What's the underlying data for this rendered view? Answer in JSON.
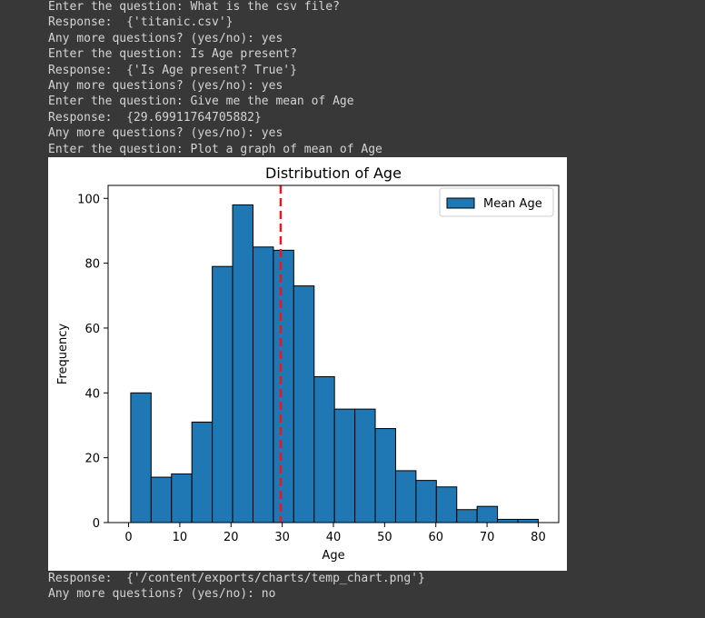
{
  "console": {
    "lines_top": [
      "Enter the question: What is the csv file?",
      "Response:  {'titanic.csv'}",
      "Any more questions? (yes/no): yes",
      "Enter the question: Is Age present?",
      "Response:  {'Is Age present? True'}",
      "Any more questions? (yes/no): yes",
      "Enter the question: Give me the mean of Age",
      "Response:  {29.69911764705882}",
      "Any more questions? (yes/no): yes",
      "Enter the question: Plot a graph of mean of Age"
    ],
    "lines_bottom": [
      "Response:  {'/content/exports/charts/temp_chart.png'}",
      "Any more questions? (yes/no): no"
    ]
  },
  "chart_data": {
    "type": "bar",
    "title": "Distribution of Age",
    "xlabel": "Age",
    "ylabel": "Frequency",
    "xlim": [
      -4,
      84
    ],
    "ylim": [
      0,
      104
    ],
    "xticks": [
      0,
      10,
      20,
      30,
      40,
      50,
      60,
      70,
      80
    ],
    "yticks": [
      0,
      20,
      40,
      60,
      80,
      100
    ],
    "bin_edges": [
      0.42,
      4.399,
      8.378,
      12.357,
      16.336,
      20.315,
      24.294,
      28.273,
      32.252,
      36.231,
      40.21,
      44.189,
      48.168,
      52.147,
      56.126,
      60.105,
      64.084,
      68.063,
      72.042,
      76.021,
      80.0
    ],
    "counts": [
      40,
      14,
      15,
      31,
      79,
      98,
      85,
      84,
      73,
      45,
      35,
      35,
      29,
      16,
      13,
      11,
      4,
      5,
      1,
      1
    ],
    "series": [
      {
        "name": "Mean Age",
        "color": "#1f77b4"
      }
    ],
    "mean_line": {
      "x": 29.69911764705882,
      "color": "#e41a1c",
      "style": "dashed"
    },
    "legend_position": "top-right",
    "grid": false
  }
}
